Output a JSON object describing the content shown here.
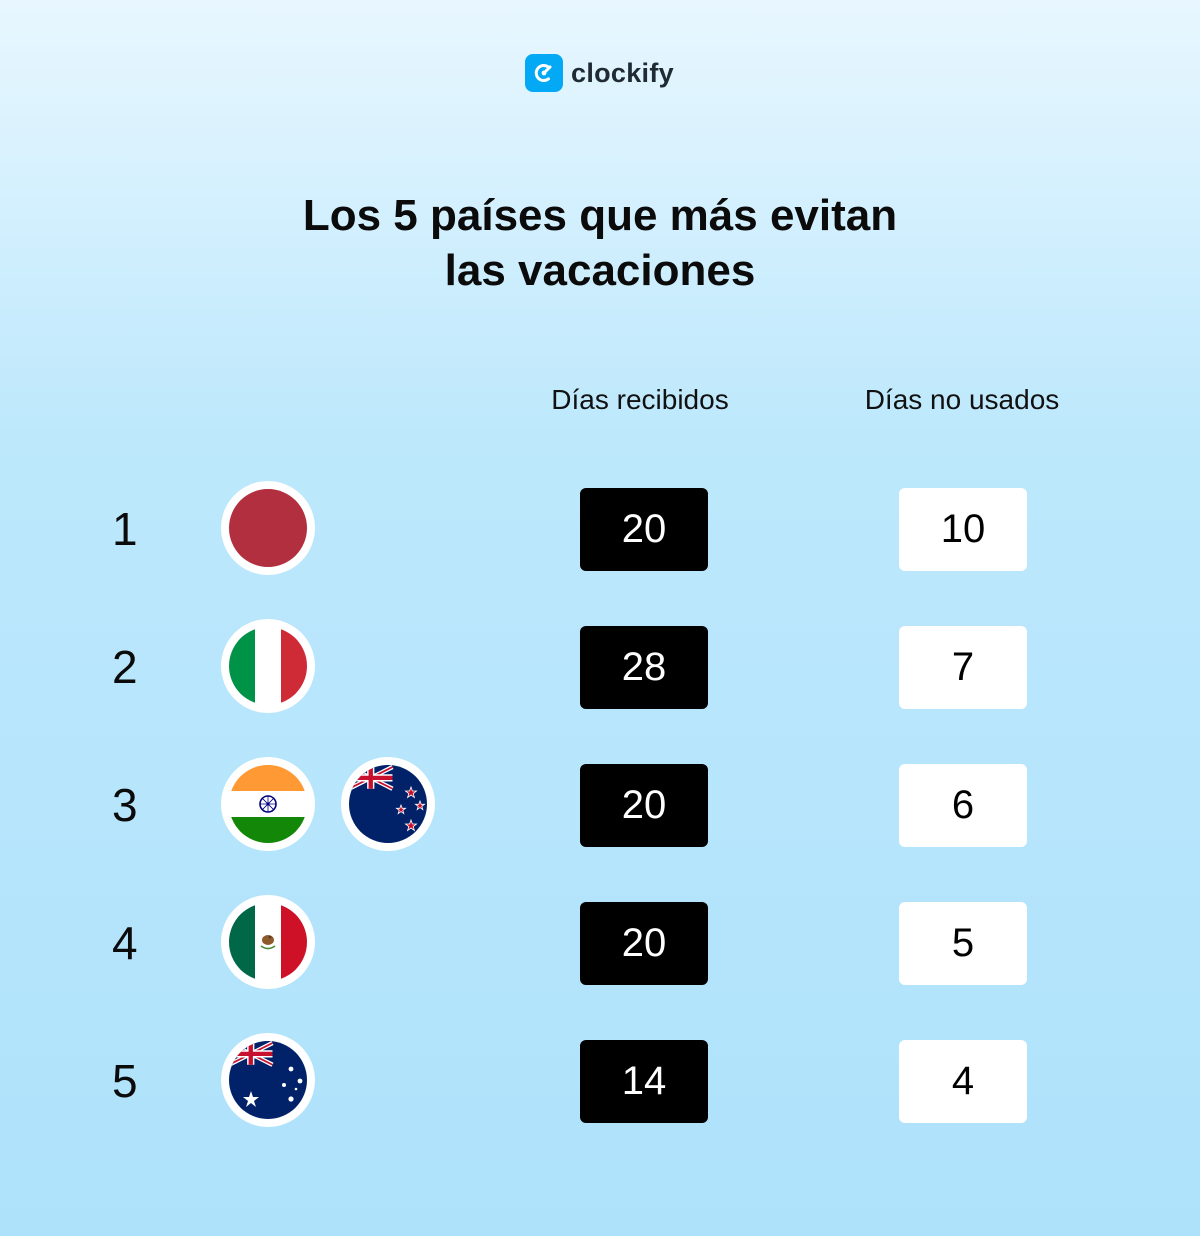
{
  "brand": {
    "name": "clockify",
    "color": "#03a9f4"
  },
  "title": {
    "line1": "Los 5 países que más evitan",
    "line2": "las vacaciones"
  },
  "columns": {
    "received": "Días recibidos",
    "unused": "Días no usados"
  },
  "rows": [
    {
      "rank": "1",
      "flags": [
        "japan-flag-icon"
      ],
      "received": "20",
      "unused": "10"
    },
    {
      "rank": "2",
      "flags": [
        "italy-flag-icon"
      ],
      "received": "28",
      "unused": "7"
    },
    {
      "rank": "3",
      "flags": [
        "india-flag-icon",
        "new-zealand-flag-icon"
      ],
      "received": "20",
      "unused": "6"
    },
    {
      "rank": "4",
      "flags": [
        "mexico-flag-icon"
      ],
      "received": "20",
      "unused": "5"
    },
    {
      "rank": "5",
      "flags": [
        "australia-flag-icon"
      ],
      "received": "14",
      "unused": "4"
    }
  ]
}
